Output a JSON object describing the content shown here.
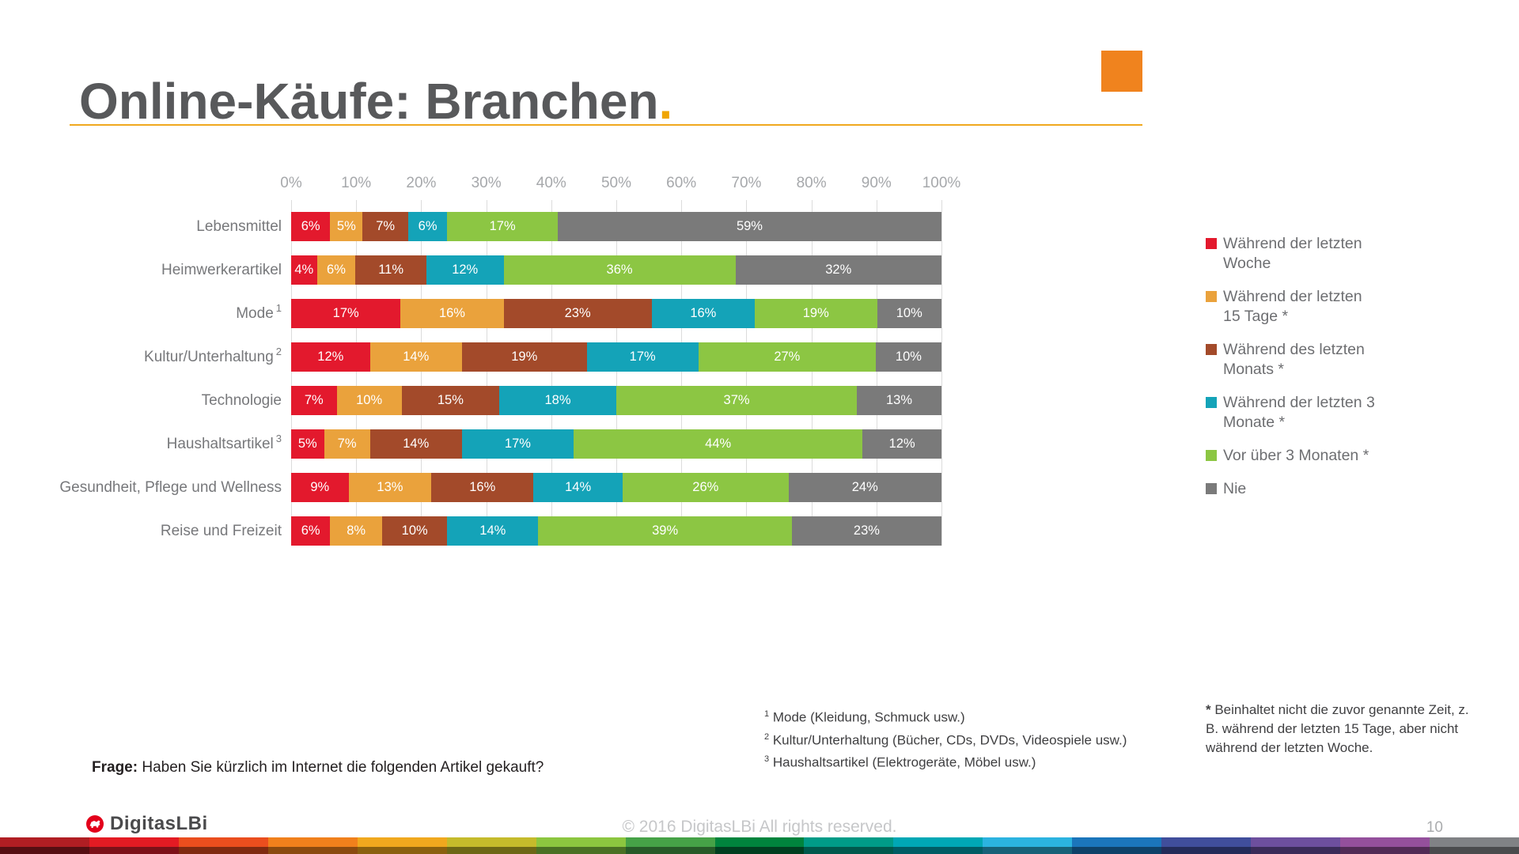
{
  "slide": {
    "title": "Online-Käufe: Branchen",
    "title_period": ".",
    "frage_label": "Frage:",
    "frage_text": " Haben Sie kürzlich im Internet die folgenden Artikel gekauft?",
    "footnotes_left": [
      {
        "sup": "1",
        "text": " Mode (Kleidung, Schmuck usw.)"
      },
      {
        "sup": "2",
        "text": " Kultur/Unterhaltung (Bücher, CDs, DVDs, Videospiele usw.)"
      },
      {
        "sup": "3",
        "text": " Haushaltsartikel (Elektrogeräte, Möbel usw.)"
      }
    ],
    "footnote_right_marker": "*",
    "footnote_right_text": " Beinhaltet nicht die zuvor genannte Zeit, z. B. während der letzten 15 Tage, aber nicht während der letzten Woche.",
    "footer": {
      "logo_text": "DigitasLBi",
      "copyright": "© 2016 DigitasLBi  All rights reserved.",
      "page_number": "10"
    },
    "accent_colors": {
      "title_gray": "#58595b",
      "accent_orange_square": "#f0831e",
      "rule_amber": "#f0a81e",
      "logo_red": "#e3001b"
    },
    "stripe_top_colors": [
      "#b01e23",
      "#e31b23",
      "#ea4e1e",
      "#f0801c",
      "#f0a81e",
      "#c5bb2b",
      "#8cc63f",
      "#46a247",
      "#00843d",
      "#009b87",
      "#00a7b5",
      "#2bb3e0",
      "#1b75bb",
      "#404e9b",
      "#6d4f9e",
      "#94509c",
      "#808285"
    ],
    "stripe_bottom_colors": [
      "#550e12",
      "#7c1118",
      "#7f2a10",
      "#8a4a0f",
      "#8a600f",
      "#6d6716",
      "#4a7024",
      "#275a28",
      "#003f20",
      "#00584c",
      "#005c64",
      "#176178",
      "#0e4168",
      "#232b58",
      "#3a2b58",
      "#512b55",
      "#4a4b4d"
    ]
  },
  "chart_data": {
    "type": "bar",
    "orientation": "horizontal",
    "stacked": true,
    "grid": true,
    "legend_position": "right",
    "xlim": [
      0,
      100
    ],
    "ticks": [
      "0%",
      "10%",
      "20%",
      "30%",
      "40%",
      "50%",
      "60%",
      "70%",
      "80%",
      "90%",
      "100%"
    ],
    "categories": [
      {
        "label": "Lebensmittel",
        "sup": ""
      },
      {
        "label": "Heimwerkerartikel",
        "sup": ""
      },
      {
        "label": "Mode",
        "sup": "1"
      },
      {
        "label": "Kultur/Unterhaltung",
        "sup": "2"
      },
      {
        "label": "Technologie",
        "sup": ""
      },
      {
        "label": "Haushaltsartikel",
        "sup": "3"
      },
      {
        "label": "Gesundheit, Pflege und Wellness",
        "sup": ""
      },
      {
        "label": "Reise und Freizeit",
        "sup": ""
      }
    ],
    "series": [
      {
        "name": "Während der letzten Woche",
        "color": "#e3192d",
        "values": [
          6,
          4,
          17,
          12,
          7,
          5,
          9,
          6
        ]
      },
      {
        "name": "Während der letzten 15 Tage *",
        "color": "#eaa23c",
        "values": [
          5,
          6,
          16,
          14,
          10,
          7,
          13,
          8
        ]
      },
      {
        "name": "Während des letzten Monats *",
        "color": "#a34a2a",
        "values": [
          7,
          11,
          23,
          19,
          15,
          14,
          16,
          10
        ]
      },
      {
        "name": "Während der letzten 3 Monate *",
        "color": "#14a3b8",
        "values": [
          6,
          12,
          16,
          17,
          18,
          17,
          14,
          14
        ]
      },
      {
        "name": "Vor über 3 Monaten *",
        "color": "#8cc643",
        "values": [
          17,
          36,
          19,
          27,
          37,
          44,
          26,
          39
        ]
      },
      {
        "name": "Nie",
        "color": "#7a7a7a",
        "values": [
          59,
          32,
          10,
          10,
          13,
          12,
          24,
          23
        ]
      }
    ],
    "value_suffix": "%"
  }
}
